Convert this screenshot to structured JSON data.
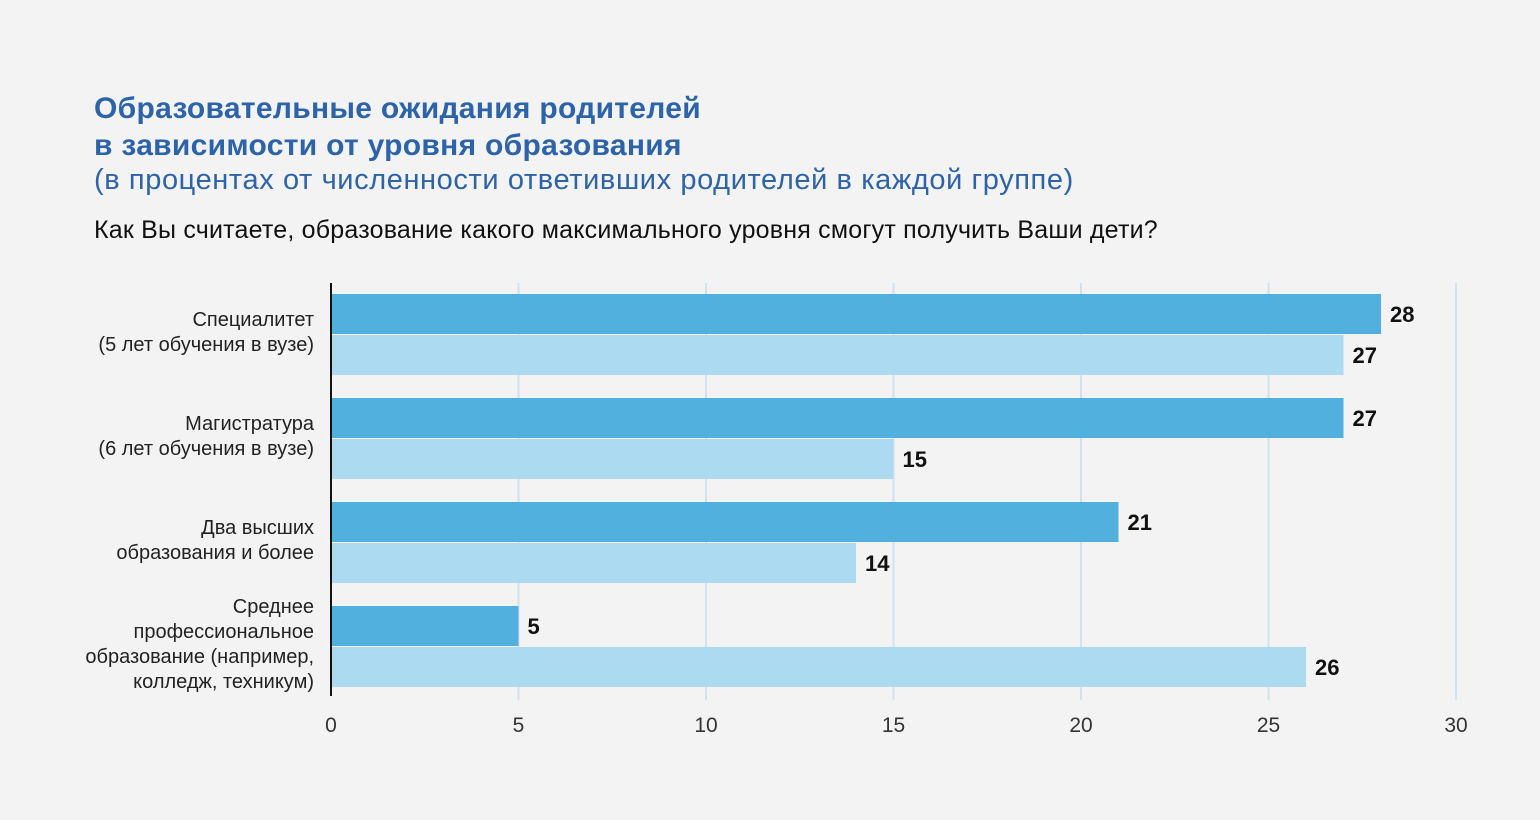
{
  "title_line1": "Образовательные ожидания родителей",
  "title_line2": "в зависимости от уровня образования",
  "subtitle": "(в процентах от численности ответивших родителей в каждой группе)",
  "question": "Как Вы считаете, образование какого максимального уровня смогут получить Ваши дети?",
  "chart_data": {
    "type": "bar",
    "orientation": "horizontal",
    "categories": [
      [
        "Специалитет",
        "(5 лет обучения в вузе)"
      ],
      [
        "Магистратура",
        "(6 лет обучения в вузе)"
      ],
      [
        "Два высших",
        "образования и более"
      ],
      [
        "Среднее",
        "профессиональное",
        "образование (например,",
        "колледж, техникум)"
      ]
    ],
    "series": [
      {
        "values": [
          28,
          27,
          21,
          5
        ],
        "color": "#52b0df"
      },
      {
        "values": [
          27,
          15,
          14,
          26
        ],
        "color": "#acdaf0"
      }
    ],
    "xlim": [
      0,
      30
    ],
    "xticks": [
      "0",
      "5",
      "10",
      "15",
      "20",
      "25",
      "30"
    ],
    "grid": true,
    "legend": "none"
  }
}
